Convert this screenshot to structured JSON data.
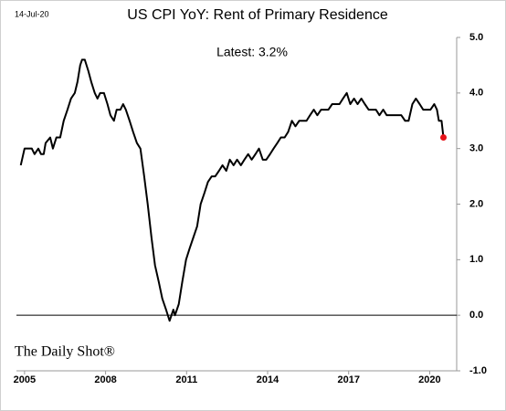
{
  "chart_data": {
    "type": "line",
    "title": "US CPI YoY: Rent of Primary Residence",
    "date_stamp": "14-Jul-20",
    "annotation": "Latest:  3.2%",
    "watermark": "The Daily Shot®",
    "xlim": [
      2004.7,
      2021.0
    ],
    "xticks": [
      2005,
      2008,
      2011,
      2014,
      2017,
      2020
    ],
    "ylim": [
      -1,
      5
    ],
    "yticks": [
      {
        "value": -1,
        "label": "-1.0"
      },
      {
        "value": 0,
        "label": "0.0"
      },
      {
        "value": 1,
        "label": "1.0"
      },
      {
        "value": 2,
        "label": "2.0"
      },
      {
        "value": 3,
        "label": "3.0"
      },
      {
        "value": 4,
        "label": "4.0"
      },
      {
        "value": 5,
        "label": "5.0"
      }
    ],
    "y_axis_side": "right",
    "zero_line": true,
    "last_point_color": "#e8141b",
    "series": [
      {
        "name": "Rent of Primary Residence",
        "color": "#000000",
        "x": [
          2004.86,
          2005.0,
          2005.27,
          2005.37,
          2005.51,
          2005.61,
          2005.71,
          2005.78,
          2005.95,
          2006.05,
          2006.18,
          2006.32,
          2006.45,
          2006.59,
          2006.72,
          2006.86,
          2006.96,
          2007.06,
          2007.13,
          2007.23,
          2007.36,
          2007.47,
          2007.6,
          2007.7,
          2007.8,
          2007.94,
          2008.07,
          2008.18,
          2008.31,
          2008.41,
          2008.55,
          2008.65,
          2008.75,
          2008.89,
          2009.02,
          2009.16,
          2009.29,
          2009.43,
          2009.56,
          2009.7,
          2009.83,
          2009.97,
          2010.1,
          2010.24,
          2010.37,
          2010.51,
          2010.57,
          2010.71,
          2010.84,
          2010.98,
          2011.11,
          2011.25,
          2011.39,
          2011.52,
          2011.66,
          2011.79,
          2011.93,
          2012.06,
          2012.2,
          2012.33,
          2012.47,
          2012.6,
          2012.74,
          2012.87,
          2013.01,
          2013.14,
          2013.28,
          2013.41,
          2013.55,
          2013.68,
          2013.82,
          2013.95,
          2014.09,
          2014.22,
          2014.36,
          2014.49,
          2014.63,
          2014.76,
          2014.9,
          2015.03,
          2015.17,
          2015.3,
          2015.44,
          2015.57,
          2015.71,
          2015.84,
          2015.98,
          2016.11,
          2016.25,
          2016.39,
          2016.52,
          2016.66,
          2016.79,
          2016.93,
          2017.06,
          2017.2,
          2017.33,
          2017.47,
          2017.6,
          2017.74,
          2017.87,
          2018.01,
          2018.14,
          2018.28,
          2018.41,
          2018.55,
          2018.68,
          2018.82,
          2018.95,
          2019.09,
          2019.22,
          2019.36,
          2019.49,
          2019.63,
          2019.76,
          2019.9,
          2020.03,
          2020.17,
          2020.27,
          2020.34,
          2020.44,
          2020.51
        ],
        "values": [
          2.7,
          3.0,
          3.0,
          2.9,
          3.0,
          2.9,
          2.9,
          3.1,
          3.2,
          3.0,
          3.2,
          3.2,
          3.5,
          3.7,
          3.9,
          4.0,
          4.2,
          4.5,
          4.6,
          4.6,
          4.4,
          4.2,
          4.0,
          3.9,
          4.0,
          4.0,
          3.8,
          3.6,
          3.5,
          3.7,
          3.7,
          3.8,
          3.7,
          3.5,
          3.3,
          3.1,
          3.0,
          2.5,
          2.0,
          1.4,
          0.9,
          0.6,
          0.3,
          0.1,
          -0.1,
          0.1,
          0.0,
          0.2,
          0.6,
          1.0,
          1.2,
          1.4,
          1.6,
          2.0,
          2.2,
          2.4,
          2.5,
          2.5,
          2.6,
          2.7,
          2.6,
          2.8,
          2.7,
          2.8,
          2.7,
          2.8,
          2.9,
          2.8,
          2.9,
          3.0,
          2.8,
          2.8,
          2.9,
          3.0,
          3.1,
          3.2,
          3.2,
          3.3,
          3.5,
          3.4,
          3.5,
          3.5,
          3.5,
          3.6,
          3.7,
          3.6,
          3.7,
          3.7,
          3.7,
          3.8,
          3.8,
          3.8,
          3.9,
          4.0,
          3.8,
          3.9,
          3.8,
          3.9,
          3.8,
          3.7,
          3.7,
          3.7,
          3.6,
          3.7,
          3.6,
          3.6,
          3.6,
          3.6,
          3.6,
          3.5,
          3.5,
          3.8,
          3.9,
          3.8,
          3.7,
          3.7,
          3.7,
          3.8,
          3.7,
          3.5,
          3.5,
          3.2
        ]
      }
    ]
  }
}
